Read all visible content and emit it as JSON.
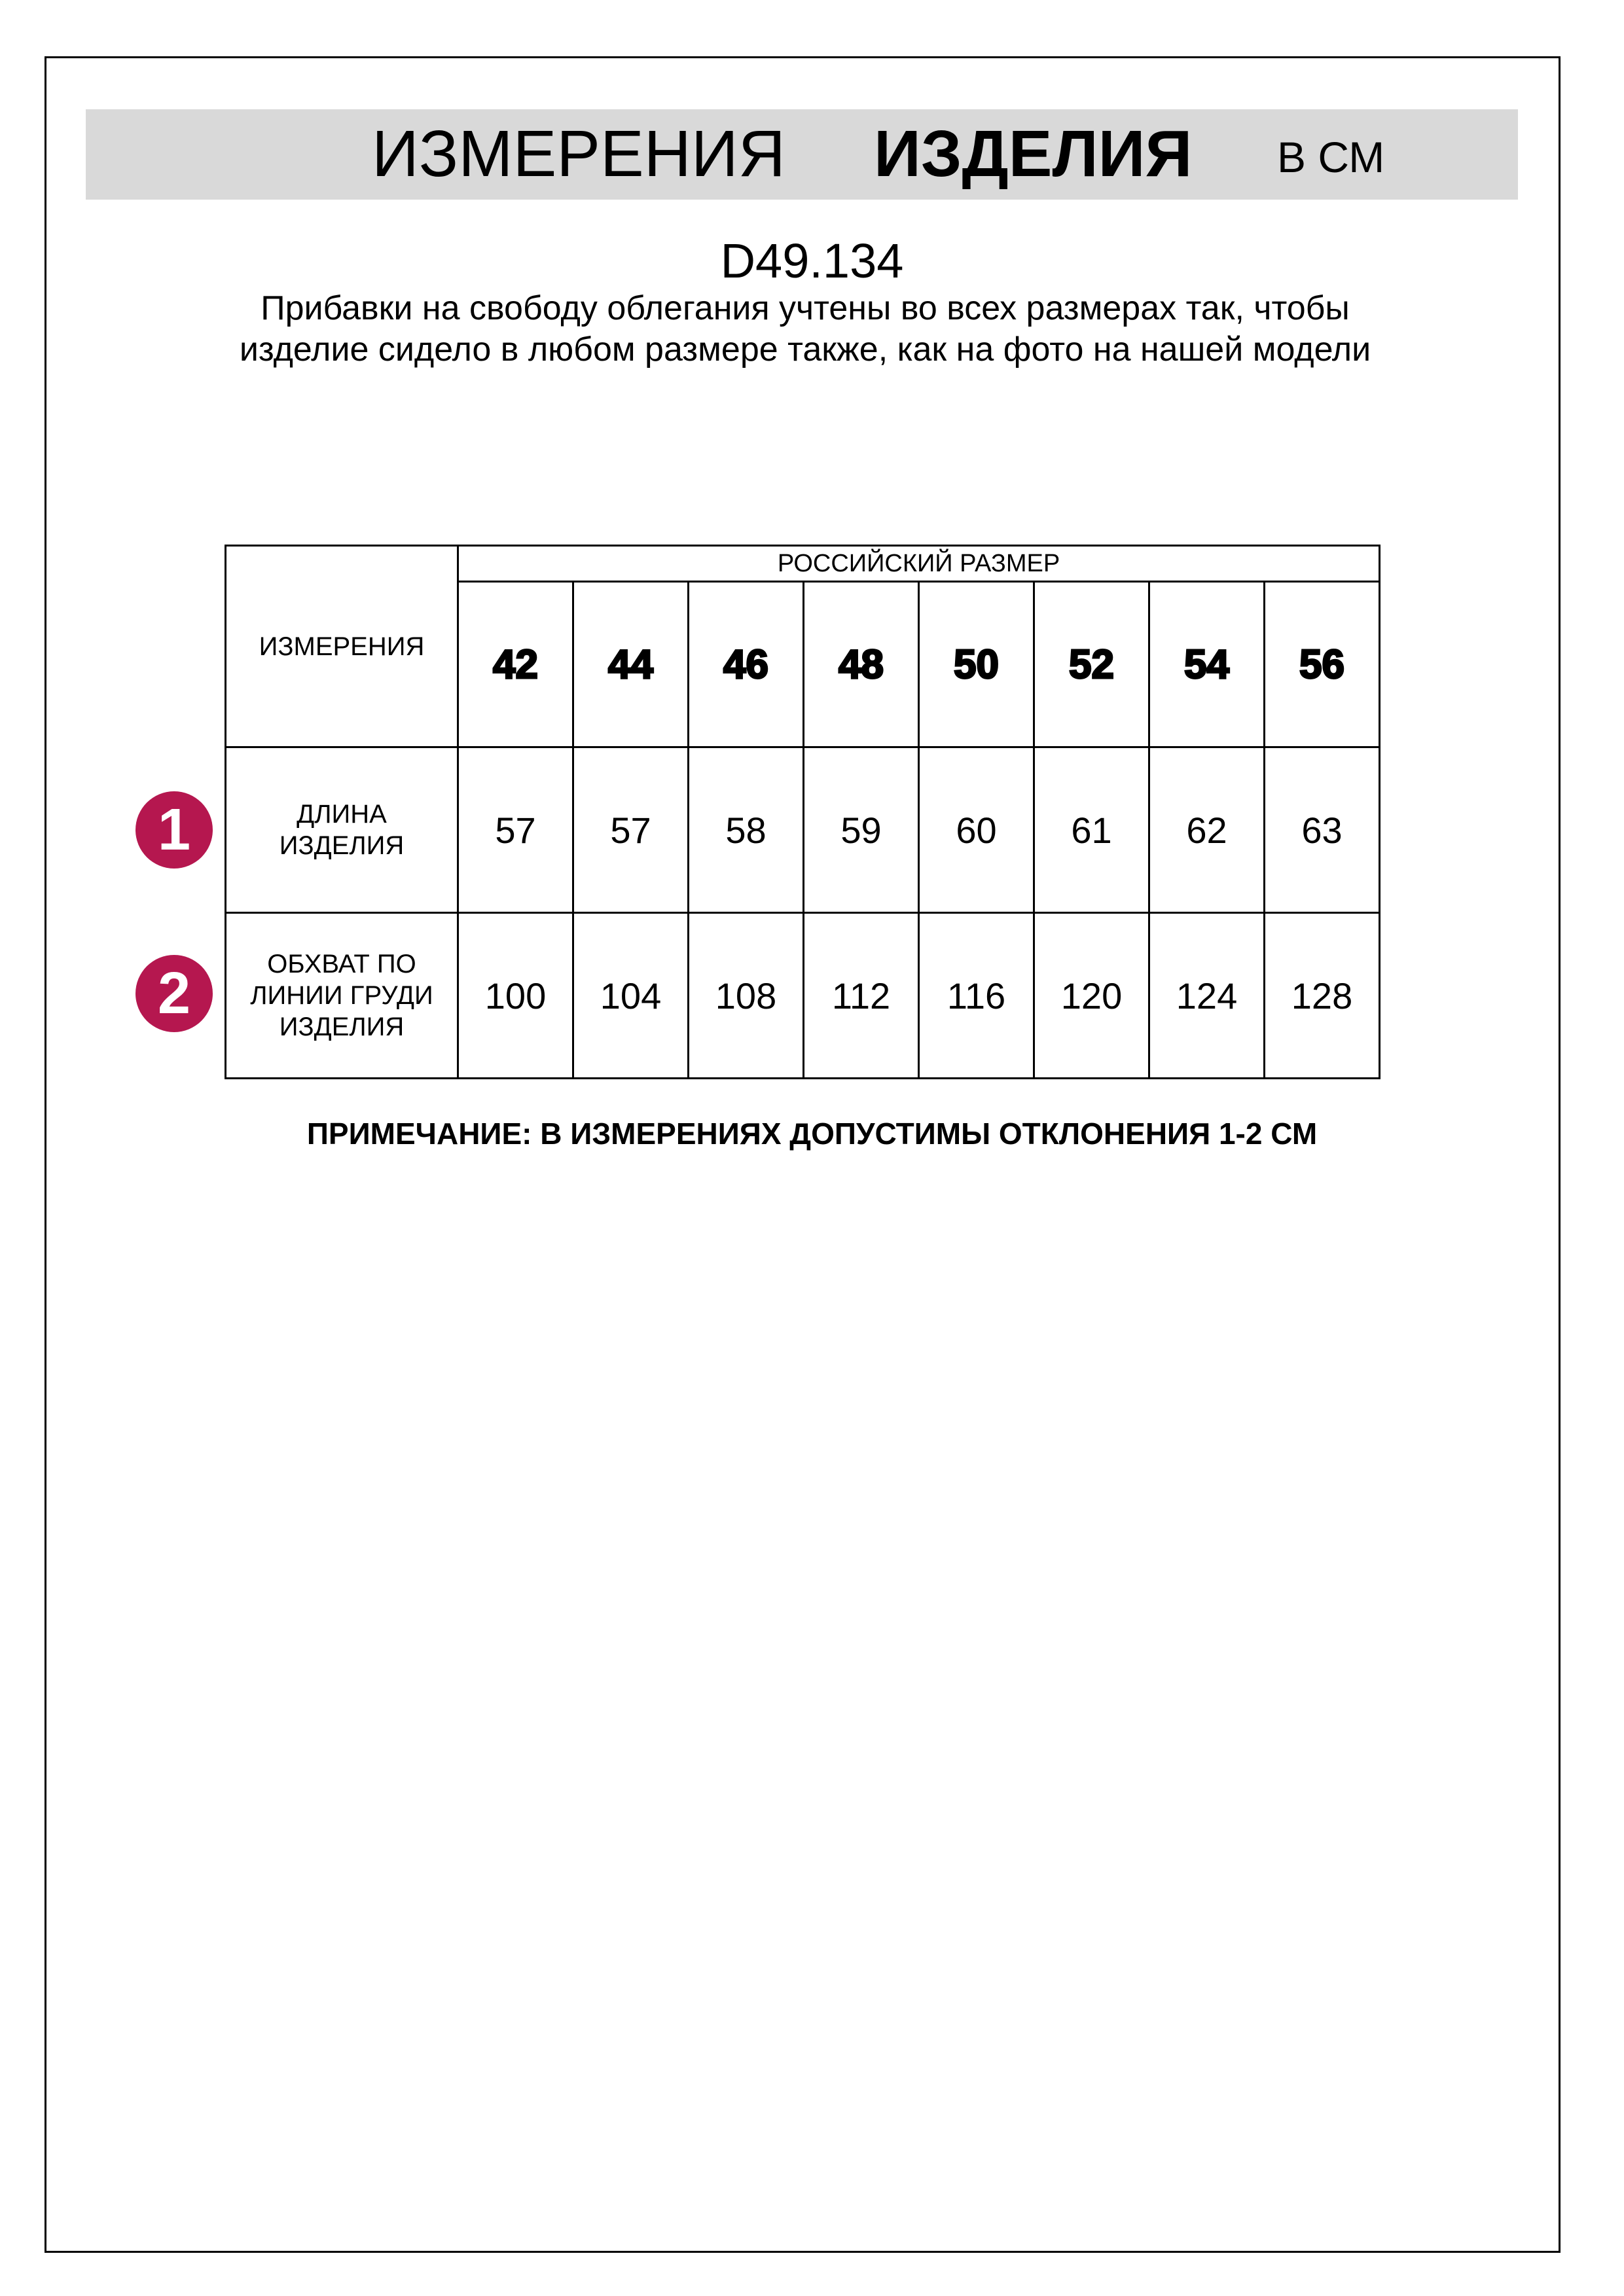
{
  "header": {
    "title_regular": "ИЗМЕРЕНИЯ",
    "title_bold": "ИЗДЕЛИЯ",
    "unit": "В СМ"
  },
  "article": "D49.134",
  "description": "Прибавки на свободу облегания учтены во всех размерах так, чтобы изделие сидело в любом размере также, как на фото на нашей модели",
  "table": {
    "corner_label": "ИЗМЕРЕНИЯ",
    "group_header": "РОССИЙСКИЙ РАЗМЕР",
    "sizes": [
      "42",
      "44",
      "46",
      "48",
      "50",
      "52",
      "54",
      "56"
    ],
    "rows": [
      {
        "marker": "1",
        "label": "ДЛИНА ИЗДЕЛИЯ",
        "values": [
          "57",
          "57",
          "58",
          "59",
          "60",
          "61",
          "62",
          "63"
        ]
      },
      {
        "marker": "2",
        "label": "ОБХВАТ ПО ЛИНИИ ГРУДИ ИЗДЕЛИЯ",
        "values": [
          "100",
          "104",
          "108",
          "112",
          "116",
          "120",
          "124",
          "128"
        ]
      }
    ]
  },
  "note": "ПРИМЕЧАНИЕ: В ИЗМЕРЕНИЯХ ДОПУСТИМЫ ОТКЛОНЕНИЯ 1-2 СМ",
  "colors": {
    "marker": "#b5174f",
    "band": "#d9d9d9"
  }
}
